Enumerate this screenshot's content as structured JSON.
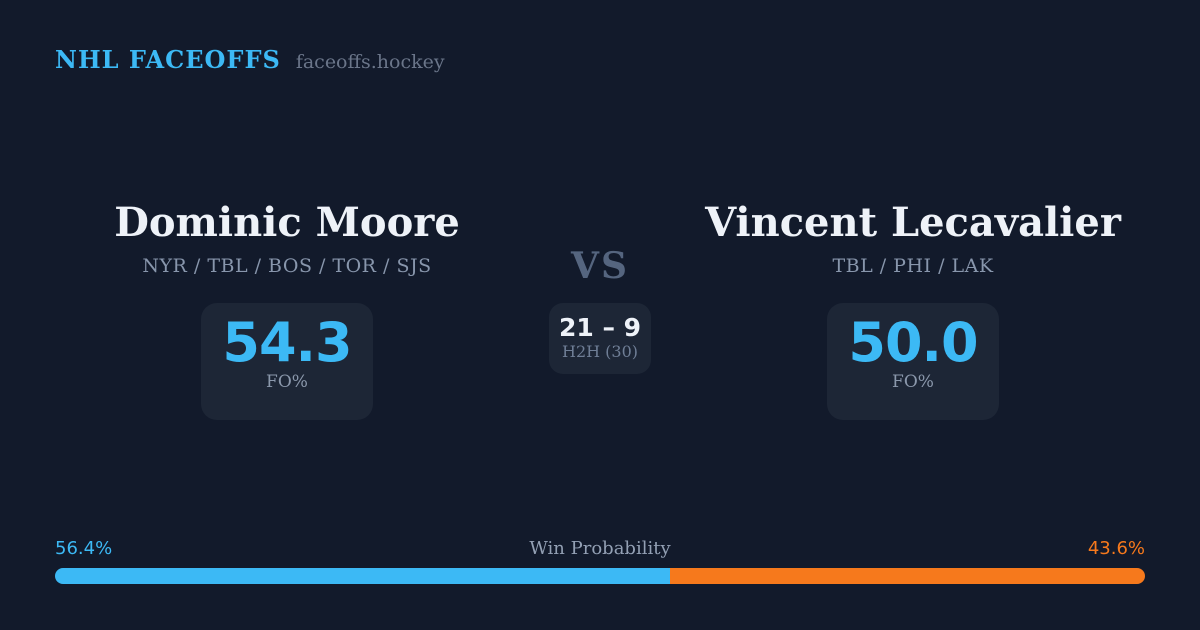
{
  "header": {
    "brand": "NHL FACEOFFS",
    "site": "faceoffs.hockey"
  },
  "matchup": {
    "vs_label": "VS",
    "h2h": {
      "score": "21 – 9",
      "label": "H2H (30)"
    },
    "left_player": {
      "name": "Dominic Moore",
      "teams": "NYR / TBL / BOS / TOR / SJS",
      "stat_value": "54.3",
      "stat_label": "FO%"
    },
    "right_player": {
      "name": "Vincent Lecavalier",
      "teams": "TBL / PHI / LAK",
      "stat_value": "50.0",
      "stat_label": "FO%"
    }
  },
  "win_probability": {
    "title": "Win Probability",
    "left_label": "56.4%",
    "right_label": "43.6%",
    "left_value": 56.4,
    "right_value": 43.6
  },
  "colors": {
    "background": "#121A2B",
    "panel": "#1D2636",
    "accent_blue": "#3CB9F5",
    "accent_orange": "#F6791C",
    "text_primary": "#EEF2F8",
    "text_muted": "#8896AC"
  }
}
